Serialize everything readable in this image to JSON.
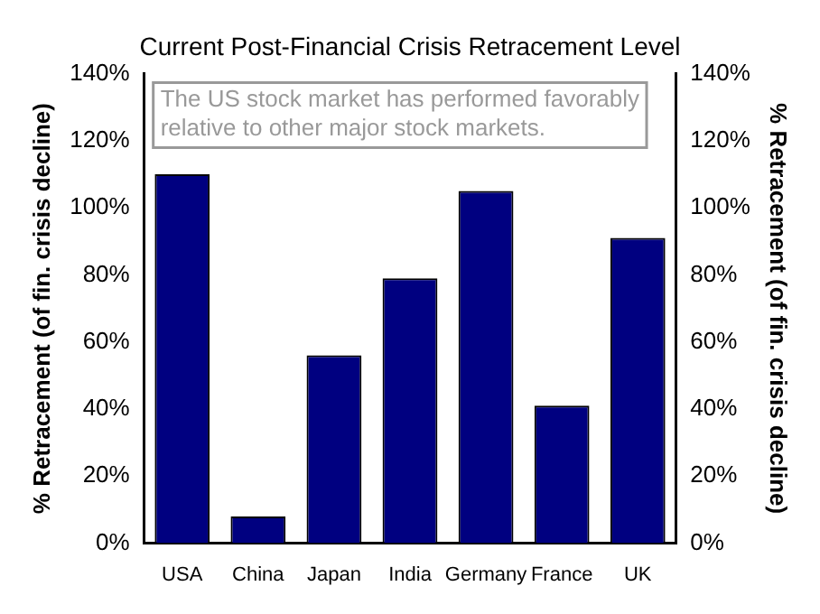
{
  "chart_data": {
    "type": "bar",
    "title": "Current Post-Financial Crisis Retracement Level",
    "categories": [
      "USA",
      "China",
      "Japan",
      "India",
      "Germany",
      "France",
      "UK"
    ],
    "values": [
      110,
      8,
      56,
      79,
      105,
      41,
      91
    ],
    "color": "#000080",
    "ylim": [
      0,
      140
    ],
    "yticks": [
      {
        "value": 0,
        "label": "0%"
      },
      {
        "value": 20,
        "label": "20%"
      },
      {
        "value": 40,
        "label": "40%"
      },
      {
        "value": 60,
        "label": "60%"
      },
      {
        "value": 80,
        "label": "80%"
      },
      {
        "value": 100,
        "label": "100%"
      },
      {
        "value": 120,
        "label": "120%"
      },
      {
        "value": 140,
        "label": "140%"
      }
    ],
    "y2lim": [
      0,
      140
    ],
    "y2ticks": [
      {
        "value": 0,
        "label": "0%"
      },
      {
        "value": 20,
        "label": "20%"
      },
      {
        "value": 40,
        "label": "40%"
      },
      {
        "value": 60,
        "label": "60%"
      },
      {
        "value": 80,
        "label": "80%"
      },
      {
        "value": 100,
        "label": "100%"
      },
      {
        "value": 120,
        "label": "120%"
      },
      {
        "value": 140,
        "label": "140%"
      }
    ],
    "ylabel": "% Retracement (of fin. crisis decline)",
    "y2label": "% Retracement (of fin. crisis decline)",
    "annotations": [
      "The US stock market has performed favorably relative to other major stock markets."
    ],
    "grid": false,
    "legend": false
  }
}
